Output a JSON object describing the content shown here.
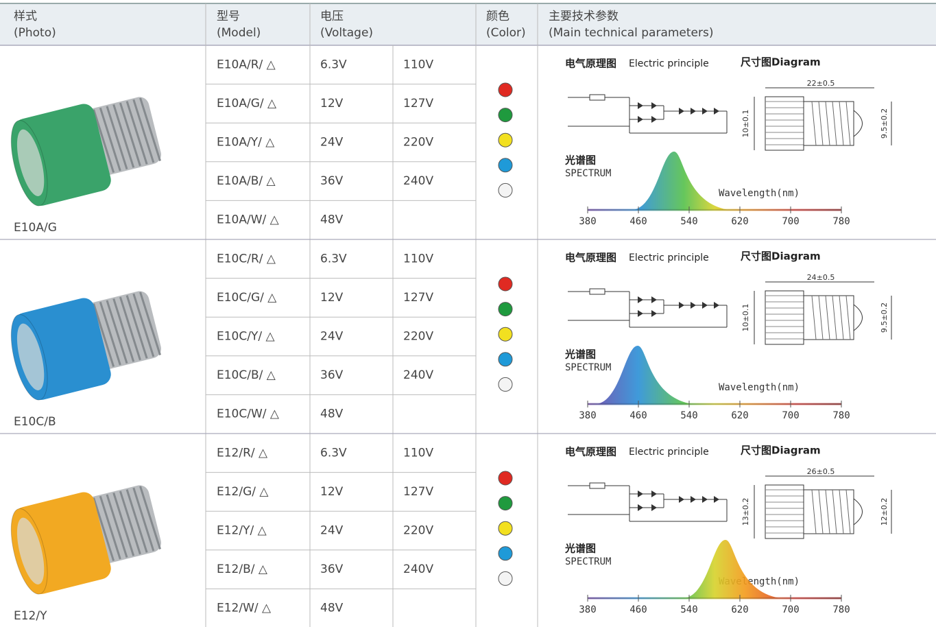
{
  "header": {
    "photo": [
      "样式",
      "(Photo)"
    ],
    "model": [
      "型号",
      "(Model)"
    ],
    "voltage": [
      "电压",
      "(Voltage)"
    ],
    "color": [
      "颜色",
      "(Color)"
    ],
    "params": [
      "主要技术参数",
      "(Main technical parameters)"
    ]
  },
  "groups": [
    {
      "label": "E10A/G",
      "rows": [
        {
          "model": "E10A/R/ △",
          "v1": "6.3V",
          "v2": "110V"
        },
        {
          "model": "E10A/G/ △",
          "v1": "12V",
          "v2": "127V"
        },
        {
          "model": "E10A/Y/ △",
          "v1": "24V",
          "v2": "220V"
        },
        {
          "model": "E10A/B/ △",
          "v1": "36V",
          "v2": "240V"
        },
        {
          "model": "E10A/W/ △",
          "v1": "48V"
        }
      ],
      "principle": "电气原理图",
      "principle_en": "Electric principle",
      "diagram": "尺寸图Diagram",
      "dims": {
        "length": "22±0.5",
        "left": "10±0.1",
        "right": "9.5±0.2"
      },
      "spectrum": "光谱图",
      "spectrum_en": "SPECTRUM",
      "axis": "Wavelength(nm)",
      "ticks": [
        380,
        460,
        540,
        620,
        700,
        780
      ]
    },
    {
      "label": "E10C/B",
      "rows": [
        {
          "model": "E10C/R/ △",
          "v1": "6.3V",
          "v2": "110V"
        },
        {
          "model": "E10C/G/ △",
          "v1": "12V",
          "v2": "127V"
        },
        {
          "model": "E10C/Y/ △",
          "v1": "24V",
          "v2": "220V"
        },
        {
          "model": "E10C/B/ △",
          "v1": "36V",
          "v2": "240V"
        },
        {
          "model": "E10C/W/ △",
          "v1": "48V"
        }
      ],
      "principle": "电气原理图",
      "principle_en": "Electric principle",
      "diagram": "尺寸图Diagram",
      "dims": {
        "length": "24±0.5",
        "left": "10±0.1",
        "right": "9.5±0.2"
      },
      "spectrum": "光谱图",
      "spectrum_en": "SPECTRUM",
      "axis": "Wavelength(nm)",
      "ticks": [
        380,
        460,
        540,
        620,
        700,
        780
      ]
    },
    {
      "label": "E12/Y",
      "rows": [
        {
          "model": "E12/R/ △",
          "v1": "6.3V",
          "v2": "110V"
        },
        {
          "model": "E12/G/ △",
          "v1": "12V",
          "v2": "127V"
        },
        {
          "model": "E12/Y/ △",
          "v1": "24V",
          "v2": "220V"
        },
        {
          "model": "E12/B/ △",
          "v1": "36V",
          "v2": "240V"
        },
        {
          "model": "E12/W/ △",
          "v1": "48V"
        }
      ],
      "principle": "电气原理图",
      "principle_en": "Electric principle",
      "diagram": "尺寸图Diagram",
      "dims": {
        "length": "26±0.5",
        "left": "13±0.2",
        "right": "12±0.2"
      },
      "spectrum": "光谱图",
      "spectrum_en": "SPECTRUM",
      "axis": "Wavelength(nm)",
      "ticks": [
        380,
        460,
        540,
        620,
        700,
        780
      ]
    }
  ]
}
